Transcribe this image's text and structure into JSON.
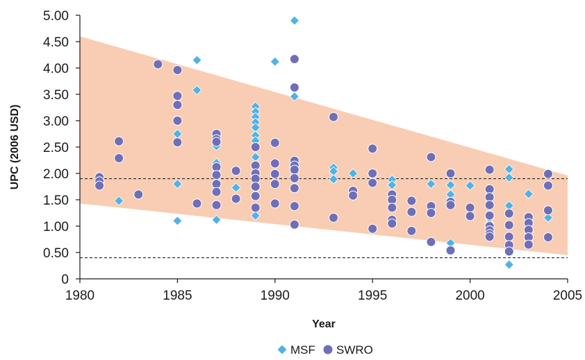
{
  "chart_data": {
    "type": "scatter",
    "xlabel": "Year",
    "ylabel": "UPC (2006 USD)",
    "xlim": [
      1980,
      2005
    ],
    "ylim": [
      0,
      5
    ],
    "x_ticks": [
      "1980",
      "1985",
      "1990",
      "1995",
      "2000",
      "2005"
    ],
    "y_ticks": [
      "0",
      "0.50",
      "1.00",
      "1.50",
      "2.00",
      "2.50",
      "3.00",
      "3.50",
      "4.00",
      "4.50",
      "5.00"
    ],
    "legend_position": "bottom-center",
    "band": {
      "color": "#f9cdb3",
      "upper": [
        [
          1980,
          4.6
        ],
        [
          2005,
          1.96
        ]
      ],
      "lower": [
        [
          1980,
          1.43
        ],
        [
          2005,
          0.45
        ]
      ]
    },
    "reference_lines": [
      {
        "y": 1.9,
        "style": "dashed"
      },
      {
        "y": 0.4,
        "style": "dashed"
      }
    ],
    "series": [
      {
        "name": "MSF",
        "marker": "diamond",
        "color": "#4fb3e6",
        "points": [
          [
            1981,
            1.85
          ],
          [
            1982,
            1.48
          ],
          [
            1985,
            2.75
          ],
          [
            1985,
            1.8
          ],
          [
            1985,
            1.1
          ],
          [
            1986,
            4.15
          ],
          [
            1986,
            3.58
          ],
          [
            1987,
            2.52
          ],
          [
            1987,
            2.2
          ],
          [
            1987,
            2.1
          ],
          [
            1987,
            1.12
          ],
          [
            1988,
            1.73
          ],
          [
            1989,
            3.27
          ],
          [
            1989,
            3.17
          ],
          [
            1989,
            3.07
          ],
          [
            1989,
            2.97
          ],
          [
            1989,
            2.87
          ],
          [
            1989,
            2.72
          ],
          [
            1989,
            2.62
          ],
          [
            1989,
            2.5
          ],
          [
            1989,
            2.31
          ],
          [
            1989,
            2.16
          ],
          [
            1989,
            1.97
          ],
          [
            1989,
            1.2
          ],
          [
            1990,
            4.12
          ],
          [
            1991,
            4.9
          ],
          [
            1991,
            3.46
          ],
          [
            1991,
            2.12
          ],
          [
            1991,
            2.0
          ],
          [
            1991,
            1.89
          ],
          [
            1993,
            2.11
          ],
          [
            1993,
            2.04
          ],
          [
            1993,
            1.89
          ],
          [
            1994,
            2.0
          ],
          [
            1996,
            1.88
          ],
          [
            1996,
            1.78
          ],
          [
            1998,
            1.8
          ],
          [
            1999,
            1.78
          ],
          [
            1999,
            1.6
          ],
          [
            1999,
            0.68
          ],
          [
            2000,
            1.77
          ],
          [
            2001,
            1.22
          ],
          [
            2001,
            1.15
          ],
          [
            2001,
            1.05
          ],
          [
            2002,
            2.08
          ],
          [
            2002,
            1.92
          ],
          [
            2002,
            1.39
          ],
          [
            2002,
            0.27
          ],
          [
            2003,
            1.61
          ],
          [
            2004,
            1.16
          ]
        ]
      },
      {
        "name": "SWRO",
        "marker": "circle",
        "color": "#6f6fb8",
        "points": [
          [
            1981,
            1.93
          ],
          [
            1981,
            1.85
          ],
          [
            1981,
            1.77
          ],
          [
            1982,
            2.61
          ],
          [
            1982,
            2.29
          ],
          [
            1983,
            1.6
          ],
          [
            1984,
            4.07
          ],
          [
            1985,
            3.96
          ],
          [
            1985,
            3.47
          ],
          [
            1985,
            3.3
          ],
          [
            1985,
            3.0
          ],
          [
            1985,
            2.59
          ],
          [
            1986,
            1.43
          ],
          [
            1987,
            2.75
          ],
          [
            1987,
            2.65
          ],
          [
            1987,
            2.6
          ],
          [
            1987,
            2.12
          ],
          [
            1987,
            1.97
          ],
          [
            1987,
            1.8
          ],
          [
            1987,
            1.65
          ],
          [
            1987,
            1.4
          ],
          [
            1988,
            2.05
          ],
          [
            1988,
            1.52
          ],
          [
            1989,
            2.5
          ],
          [
            1989,
            2.15
          ],
          [
            1989,
            2.0
          ],
          [
            1989,
            1.9
          ],
          [
            1989,
            1.75
          ],
          [
            1989,
            1.57
          ],
          [
            1989,
            1.35
          ],
          [
            1990,
            2.58
          ],
          [
            1990,
            2.19
          ],
          [
            1990,
            1.99
          ],
          [
            1990,
            1.8
          ],
          [
            1990,
            1.43
          ],
          [
            1991,
            4.17
          ],
          [
            1991,
            3.63
          ],
          [
            1991,
            2.24
          ],
          [
            1991,
            2.15
          ],
          [
            1991,
            2.07
          ],
          [
            1991,
            1.91
          ],
          [
            1991,
            1.72
          ],
          [
            1991,
            1.38
          ],
          [
            1991,
            1.03
          ],
          [
            1993,
            3.07
          ],
          [
            1993,
            1.16
          ],
          [
            1994,
            1.67
          ],
          [
            1994,
            1.58
          ],
          [
            1995,
            2.47
          ],
          [
            1995,
            2.0
          ],
          [
            1995,
            1.82
          ],
          [
            1995,
            0.95
          ],
          [
            1996,
            1.6
          ],
          [
            1996,
            1.5
          ],
          [
            1996,
            1.35
          ],
          [
            1996,
            1.12
          ],
          [
            1996,
            1.05
          ],
          [
            1997,
            1.48
          ],
          [
            1997,
            1.27
          ],
          [
            1997,
            0.91
          ],
          [
            1998,
            2.31
          ],
          [
            1998,
            1.38
          ],
          [
            1998,
            1.25
          ],
          [
            1998,
            0.7
          ],
          [
            1999,
            2.0
          ],
          [
            1999,
            1.46
          ],
          [
            1999,
            1.4
          ],
          [
            1999,
            0.54
          ],
          [
            2000,
            1.35
          ],
          [
            2000,
            1.19
          ],
          [
            2001,
            2.07
          ],
          [
            2001,
            1.7
          ],
          [
            2001,
            1.55
          ],
          [
            2001,
            1.4
          ],
          [
            2001,
            1.2
          ],
          [
            2001,
            1.0
          ],
          [
            2001,
            0.92
          ],
          [
            2001,
            0.85
          ],
          [
            2001,
            0.8
          ],
          [
            2002,
            1.24
          ],
          [
            2002,
            1.02
          ],
          [
            2002,
            0.8
          ],
          [
            2002,
            0.64
          ],
          [
            2002,
            0.52
          ],
          [
            2003,
            1.17
          ],
          [
            2003,
            1.06
          ],
          [
            2003,
            0.93
          ],
          [
            2003,
            0.79
          ],
          [
            2003,
            0.65
          ],
          [
            2004,
            1.99
          ],
          [
            2004,
            1.77
          ],
          [
            2004,
            1.3
          ],
          [
            2004,
            0.79
          ]
        ]
      }
    ]
  }
}
